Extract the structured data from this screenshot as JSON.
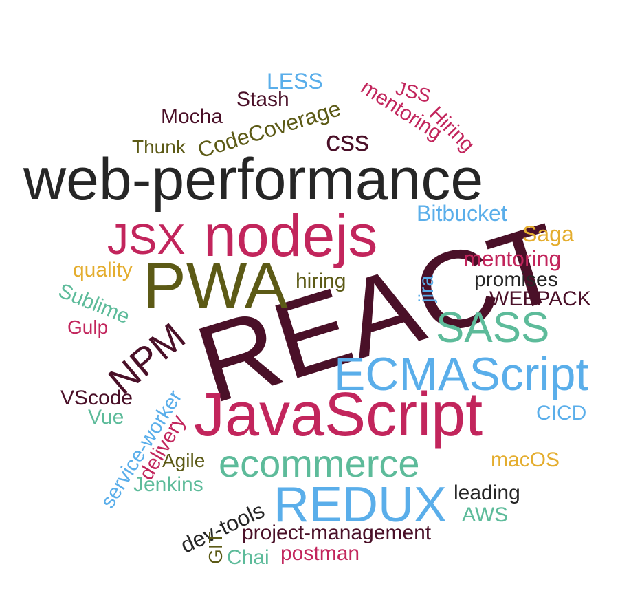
{
  "colors": {
    "dark": "#262626",
    "maroon": "#4a1028",
    "crimson": "#c2255c",
    "olive": "#5c5a16",
    "teal": "#5dbb9a",
    "sky": "#5aaeea",
    "gold": "#e4ad2e"
  },
  "words": [
    {
      "id": "web-performance",
      "text": "web-performance",
      "color": "dark"
    },
    {
      "id": "react",
      "text": "REACT",
      "color": "maroon"
    },
    {
      "id": "javascript",
      "text": "JavaScript",
      "color": "crimson"
    },
    {
      "id": "pwa",
      "text": "PWA",
      "color": "olive"
    },
    {
      "id": "nodejs",
      "text": "nodejs",
      "color": "crimson"
    },
    {
      "id": "jsx",
      "text": "JSX",
      "color": "crimson"
    },
    {
      "id": "ecmascript",
      "text": "ECMAScript",
      "color": "sky"
    },
    {
      "id": "redux",
      "text": "REDUX",
      "color": "sky"
    },
    {
      "id": "ecommerce",
      "text": "ecommerce",
      "color": "teal"
    },
    {
      "id": "sass",
      "text": "SASS",
      "color": "teal"
    },
    {
      "id": "npm",
      "text": "NPM",
      "color": "maroon"
    },
    {
      "id": "css",
      "text": "css",
      "color": "maroon"
    },
    {
      "id": "less",
      "text": "LESS",
      "color": "sky"
    },
    {
      "id": "stash",
      "text": "Stash",
      "color": "maroon"
    },
    {
      "id": "mocha",
      "text": "Mocha",
      "color": "maroon"
    },
    {
      "id": "codecoverage",
      "text": "CodeCoverage",
      "color": "olive"
    },
    {
      "id": "thunk",
      "text": "Thunk",
      "color": "olive"
    },
    {
      "id": "mentoring-rotated",
      "text": "mentoring",
      "color": "crimson"
    },
    {
      "id": "jss",
      "text": "JSS",
      "color": "crimson"
    },
    {
      "id": "hiring-rotated",
      "text": "Hiring",
      "color": "crimson"
    },
    {
      "id": "bitbucket",
      "text": "Bitbucket",
      "color": "sky"
    },
    {
      "id": "saga",
      "text": "Saga",
      "color": "gold"
    },
    {
      "id": "mentoring",
      "text": "mentoring",
      "color": "crimson"
    },
    {
      "id": "promises",
      "text": "promises",
      "color": "dark"
    },
    {
      "id": "webpack",
      "text": "WEBPACK",
      "color": "maroon"
    },
    {
      "id": "quality",
      "text": "quality",
      "color": "gold"
    },
    {
      "id": "sublime",
      "text": "Sublime",
      "color": "teal"
    },
    {
      "id": "hiring",
      "text": "hiring",
      "color": "olive"
    },
    {
      "id": "jira",
      "text": "jira",
      "color": "sky"
    },
    {
      "id": "gulp",
      "text": "Gulp",
      "color": "crimson"
    },
    {
      "id": "vscode",
      "text": "VScode",
      "color": "maroon"
    },
    {
      "id": "vue",
      "text": "Vue",
      "color": "teal"
    },
    {
      "id": "service-worker",
      "text": "service-worker",
      "color": "sky"
    },
    {
      "id": "delivery",
      "text": "delivery",
      "color": "crimson"
    },
    {
      "id": "agile",
      "text": "Agile",
      "color": "olive"
    },
    {
      "id": "jenkins",
      "text": "Jenkins",
      "color": "teal"
    },
    {
      "id": "cicd",
      "text": "CICD",
      "color": "sky"
    },
    {
      "id": "macos",
      "text": "macOS",
      "color": "gold"
    },
    {
      "id": "leading",
      "text": "leading",
      "color": "dark"
    },
    {
      "id": "aws",
      "text": "AWS",
      "color": "teal"
    },
    {
      "id": "dev-tools",
      "text": "dev-tools",
      "color": "dark"
    },
    {
      "id": "project-management",
      "text": "project-management",
      "color": "maroon"
    },
    {
      "id": "git",
      "text": "GIT",
      "color": "olive"
    },
    {
      "id": "chai",
      "text": "Chai",
      "color": "teal"
    },
    {
      "id": "postman",
      "text": "postman",
      "color": "crimson"
    }
  ]
}
